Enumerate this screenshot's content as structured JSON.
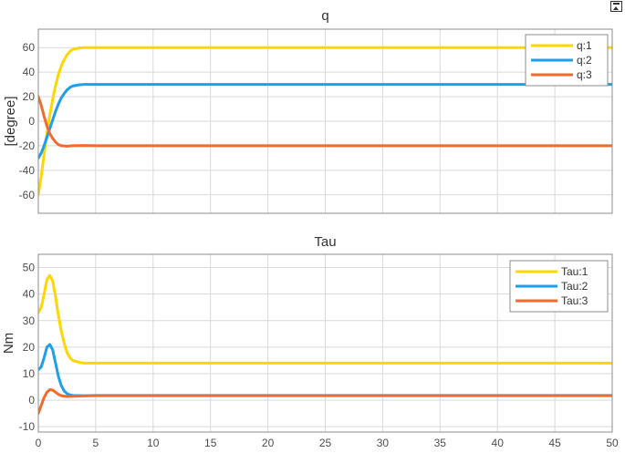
{
  "chart_data": [
    {
      "type": "line",
      "title": "q",
      "xlabel": "",
      "ylabel": "[degree]",
      "xlim": [
        0,
        50
      ],
      "ylim": [
        -75,
        75
      ],
      "xticks": [
        0,
        5,
        10,
        15,
        20,
        25,
        30,
        35,
        40,
        45,
        50
      ],
      "yticks": [
        -60,
        -40,
        -20,
        0,
        20,
        40,
        60
      ],
      "grid": true,
      "legend_position": "top-right",
      "series": [
        {
          "name": "q:1",
          "color": "#ffd700",
          "points": [
            [
              0,
              -60
            ],
            [
              0.25,
              -45
            ],
            [
              0.5,
              -27
            ],
            [
              0.75,
              -10
            ],
            [
              1,
              5
            ],
            [
              1.25,
              18
            ],
            [
              1.5,
              29
            ],
            [
              1.75,
              38
            ],
            [
              2,
              45
            ],
            [
              2.25,
              50
            ],
            [
              2.5,
              54
            ],
            [
              2.75,
              57
            ],
            [
              3,
              58.5
            ],
            [
              3.5,
              59.6
            ],
            [
              4,
              60
            ],
            [
              50,
              60
            ]
          ]
        },
        {
          "name": "q:2",
          "color": "#1f9eeb",
          "points": [
            [
              0,
              -30
            ],
            [
              0.25,
              -26
            ],
            [
              0.5,
              -20
            ],
            [
              0.75,
              -13
            ],
            [
              1,
              -6
            ],
            [
              1.25,
              1
            ],
            [
              1.5,
              8
            ],
            [
              1.75,
              14
            ],
            [
              2,
              19
            ],
            [
              2.25,
              22.5
            ],
            [
              2.5,
              25.5
            ],
            [
              2.75,
              27.5
            ],
            [
              3,
              28.7
            ],
            [
              3.5,
              29.6
            ],
            [
              4,
              30
            ],
            [
              50,
              30
            ]
          ]
        },
        {
          "name": "q:3",
          "color": "#f26b2d",
          "points": [
            [
              0,
              20
            ],
            [
              0.25,
              13
            ],
            [
              0.5,
              4
            ],
            [
              0.75,
              -4
            ],
            [
              1,
              -10
            ],
            [
              1.25,
              -14
            ],
            [
              1.5,
              -17
            ],
            [
              1.75,
              -19
            ],
            [
              2,
              -20
            ],
            [
              2.5,
              -20.3
            ],
            [
              3,
              -20
            ],
            [
              4,
              -19.8
            ],
            [
              5,
              -20
            ],
            [
              50,
              -20
            ]
          ]
        }
      ]
    },
    {
      "type": "line",
      "title": "Tau",
      "xlabel": "",
      "ylabel": "Nm",
      "xlim": [
        0,
        50
      ],
      "ylim": [
        -12,
        55
      ],
      "xticks": [
        0,
        5,
        10,
        15,
        20,
        25,
        30,
        35,
        40,
        45,
        50
      ],
      "yticks": [
        -10,
        0,
        10,
        20,
        30,
        40,
        50
      ],
      "grid": true,
      "legend_position": "top-right",
      "series": [
        {
          "name": "Tau:1",
          "color": "#ffd700",
          "points": [
            [
              0,
              33
            ],
            [
              0.25,
              35
            ],
            [
              0.5,
              40
            ],
            [
              0.75,
              45.5
            ],
            [
              1,
              47
            ],
            [
              1.25,
              45
            ],
            [
              1.5,
              39
            ],
            [
              1.75,
              32
            ],
            [
              2,
              26
            ],
            [
              2.25,
              21.5
            ],
            [
              2.5,
              18
            ],
            [
              2.75,
              16
            ],
            [
              3,
              15
            ],
            [
              3.5,
              14.3
            ],
            [
              4,
              14
            ],
            [
              5,
              14
            ],
            [
              50,
              14
            ]
          ]
        },
        {
          "name": "Tau:2",
          "color": "#1f9eeb",
          "points": [
            [
              0,
              11.5
            ],
            [
              0.25,
              12.5
            ],
            [
              0.5,
              16
            ],
            [
              0.75,
              20
            ],
            [
              1,
              21
            ],
            [
              1.25,
              19
            ],
            [
              1.5,
              14
            ],
            [
              1.75,
              9
            ],
            [
              2,
              5.5
            ],
            [
              2.25,
              3.5
            ],
            [
              2.5,
              2.5
            ],
            [
              2.75,
              2
            ],
            [
              3,
              1.8
            ],
            [
              4,
              1.7
            ],
            [
              5,
              1.8
            ],
            [
              50,
              1.8
            ]
          ]
        },
        {
          "name": "Tau:3",
          "color": "#f26b2d",
          "points": [
            [
              0,
              -5
            ],
            [
              0.25,
              -2
            ],
            [
              0.5,
              1
            ],
            [
              0.75,
              3
            ],
            [
              1,
              4
            ],
            [
              1.25,
              3.8
            ],
            [
              1.5,
              3
            ],
            [
              1.75,
              2.2
            ],
            [
              2,
              1.7
            ],
            [
              2.5,
              1.4
            ],
            [
              3,
              1.5
            ],
            [
              4,
              1.6
            ],
            [
              5,
              1.7
            ],
            [
              50,
              1.7
            ]
          ]
        }
      ]
    }
  ]
}
